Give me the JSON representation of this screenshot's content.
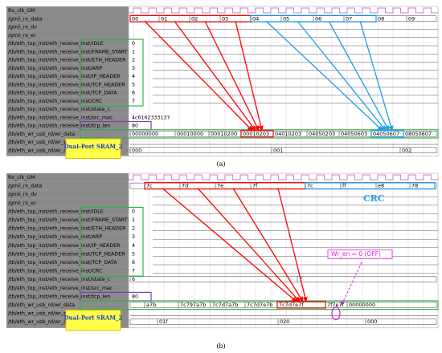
{
  "panels": [
    {
      "caption": "(a)",
      "signals": [
        "Rx_clk_GM",
        "/gmii_rx_data",
        "/gmii_rx_dv",
        "/gmii_rx_er",
        "/tb/eth_top_inst/eth_receive_inst/IDLE",
        "/tb/eth_top_inst/eth_receive_inst/FRAME_START",
        "/tb/eth_top_inst/eth_receive_inst/ETH_HEADER",
        "/tb/eth_top_inst/eth_receive_inst/ARP",
        "/tb/eth_top_inst/eth_receive_inst/IP_HEADER",
        "/tb/eth_top_inst/eth_receive_inst/TCP_HEADER",
        "/tb/eth_top_inst/eth_receive_inst/TCP_DATA",
        "/tb/eth_top_inst/eth_receive_inst/CRC",
        "/tb/eth_top_inst/eth_receive_inst/state_c",
        "/tb/eth_top_inst/eth_receive_inst/src_mac",
        "/tb/eth_top_inst/eth_receive_inst/tcp_len",
        "/tb/eth_wr_usb_rd/wr_data",
        "/tb/eth_wr_usb_rd/wr_en",
        "/tb/eth_wr_usb_rd/wr_addr"
      ],
      "cursor_values": [
        null,
        null,
        null,
        null,
        "0",
        "1",
        "2",
        "3",
        "4",
        "5",
        "6",
        "7",
        null,
        "4c6162333137",
        "80",
        null,
        null,
        null
      ],
      "waves": {
        "rx_data": [
          "00",
          "01",
          "02",
          "03",
          "04",
          "05",
          "06",
          "07",
          "08",
          "09"
        ],
        "wr_data": [
          "00000000",
          "00010000",
          "00010200",
          "00010203",
          "04010203",
          "04050203",
          "04050603",
          "04050607",
          "08050607"
        ],
        "wr_addr": [
          "000",
          "001",
          "002"
        ]
      },
      "sram_label": "Dual-Port SRAM_2"
    },
    {
      "caption": "(b)",
      "signals": [
        "Rx_clk_GM",
        "/gmii_rx_data",
        "/gmii_rx_dv",
        "/gmii_rx_er",
        "/tb/eth_top_inst/eth_receive_inst/IDLE",
        "/tb/eth_top_inst/eth_receive_inst/FRAME_START",
        "/tb/eth_top_inst/eth_receive_inst/ETH_HEADER",
        "/tb/eth_top_inst/eth_receive_inst/ARP",
        "/tb/eth_top_inst/eth_receive_inst/IP_HEADER",
        "/tb/eth_top_inst/eth_receive_inst/TCP_HEADER",
        "/tb/eth_top_inst/eth_receive_inst/TCP_DATA",
        "/tb/eth_top_inst/eth_receive_inst/CRC",
        "/tb/eth_top_inst/eth_receive_inst/state_c",
        "/tb/eth_top_inst/eth_receive_inst/src_mac",
        "/tb/eth_top_inst/eth_receive_inst/tcp_len",
        "/tb/eth_wr_usb_rd/wr_data",
        "/tb/eth_wr_usb_rd/wr_en",
        "/tb/eth_wr_usb_rd/wr_addr"
      ],
      "cursor_values": [
        null,
        null,
        null,
        null,
        "0",
        "1",
        "2",
        "3",
        "4",
        "5",
        "6",
        "7",
        "6",
        null,
        "80",
        null,
        null,
        null
      ],
      "waves": {
        "rx_data": [
          "7c",
          "7d",
          "7e",
          "7f",
          "7c",
          "ff",
          "e8",
          "78"
        ],
        "wr_data": [
          "a7b",
          "7c797a7b",
          "7c7d7a7b",
          "7c7d7e7b",
          "7c7d7e7f",
          "7f7e7f",
          "00000000"
        ],
        "wr_addr": [
          "01f",
          "020",
          "000"
        ],
        "state_c": [
          "7"
        ]
      },
      "sram_label": "Dual-Port SRAM_2",
      "crc_label": "CRC",
      "wr_en_note": "Wr_en = 0 (OFF)"
    }
  ]
}
